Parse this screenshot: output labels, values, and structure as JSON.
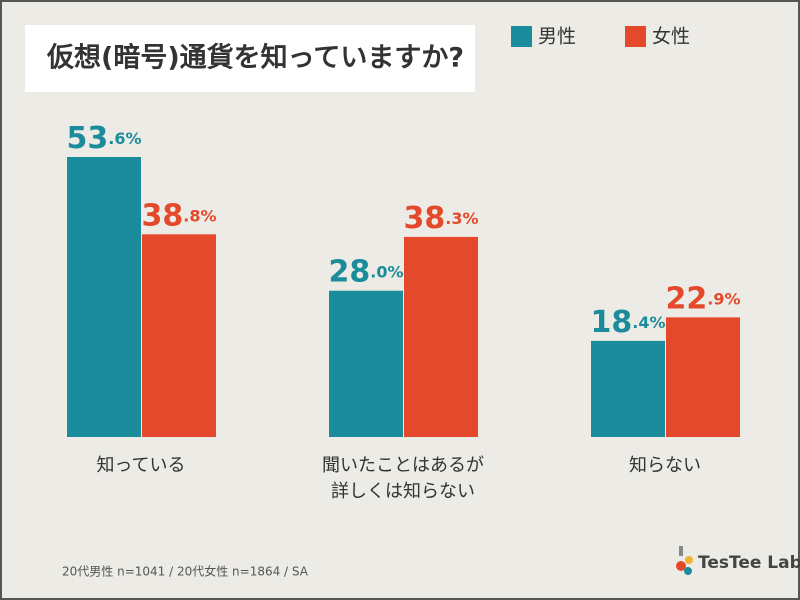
{
  "chart_data": {
    "type": "bar",
    "title": "仮想(暗号)通貨を知っていますか?",
    "categories": [
      "知っている",
      "聞いたことはあるが\n詳しくは知らない",
      "知らない"
    ],
    "series": [
      {
        "name": "男性",
        "color": "#1b8c9b",
        "values": [
          53.6,
          28.0,
          18.4
        ],
        "value_labels": [
          "53.6%",
          "28.0%",
          "18.4%"
        ]
      },
      {
        "name": "女性",
        "color": "#e4492b",
        "values": [
          38.8,
          38.3,
          22.9
        ],
        "value_labels": [
          "38.8%",
          "38.3%",
          "22.9%"
        ]
      }
    ],
    "note": "20代男性 n=1041 / 20代女性 n=1864 / SA",
    "logo": "TesTee Lab."
  }
}
